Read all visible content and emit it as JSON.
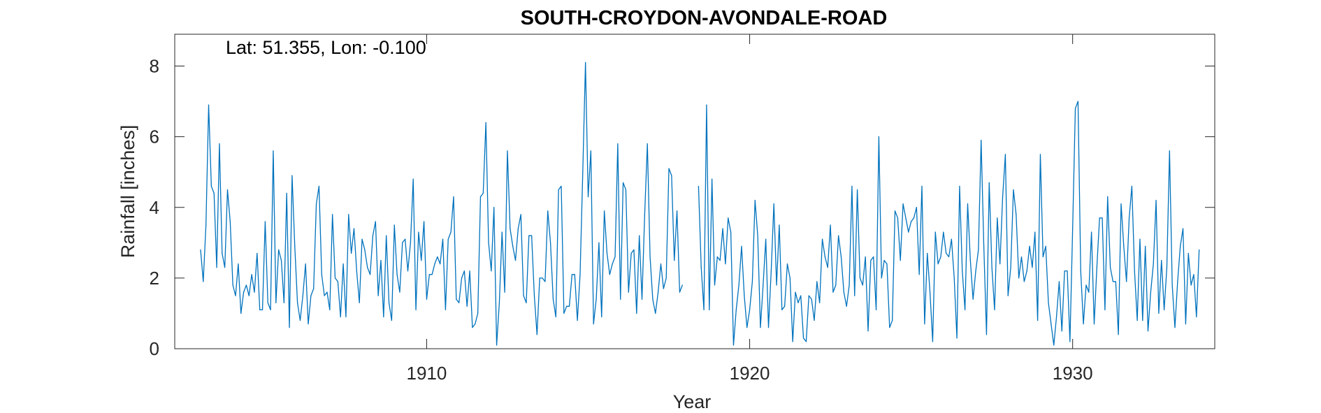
{
  "chart_data": {
    "type": "line",
    "title": "SOUTH-CROYDON-AVONDALE-ROAD",
    "annotation": "Lat: 51.355, Lon: -0.100",
    "xlabel": "Year",
    "ylabel": "Rainfall [inches]",
    "xlim": [
      1902.2,
      1934.4
    ],
    "ylim": [
      0,
      8.9
    ],
    "xticks": [
      1910,
      1920,
      1930
    ],
    "yticks": [
      0,
      2,
      4,
      6,
      8
    ],
    "grid": false,
    "line_color": "#0072BD",
    "series": [
      {
        "x_start": 1903.0,
        "x_step": 0.083333,
        "values": [
          2.8,
          1.9,
          3.5,
          6.9,
          4.6,
          4.4,
          2.3,
          5.8,
          2.7,
          2.3,
          4.5,
          3.6,
          1.8,
          1.5,
          2.4,
          1.0,
          1.6,
          1.8,
          1.5,
          2.1,
          1.6,
          2.7,
          1.1,
          1.1,
          3.6,
          1.3,
          1.1,
          5.6,
          1.3,
          2.8,
          2.5,
          1.3,
          4.4,
          0.6,
          4.9,
          2.9,
          1.3,
          0.8,
          1.5,
          2.4,
          0.7,
          1.5,
          1.7,
          4.1,
          4.6,
          2.1,
          1.5,
          1.6,
          1.1,
          3.8,
          2.0,
          1.9,
          0.9,
          2.4,
          0.9,
          3.8,
          2.7,
          3.4,
          2.2,
          1.3,
          3.1,
          2.8,
          2.3,
          2.1,
          3.2,
          3.6,
          1.5,
          2.5,
          0.9,
          3.2,
          1.3,
          0.8,
          3.5,
          2.1,
          1.6,
          3.0,
          3.1,
          2.2,
          3.0,
          4.8,
          1.1,
          3.3,
          2.5,
          3.6,
          1.4,
          2.1,
          2.1,
          2.4,
          2.6,
          2.4,
          3.1,
          1.1,
          3.1,
          3.3,
          4.3,
          1.4,
          1.3,
          2.0,
          2.2,
          1.2,
          2.2,
          0.6,
          0.7,
          1.0,
          4.3,
          4.4,
          6.4,
          3.0,
          2.2,
          4.0,
          0.1,
          1.3,
          3.3,
          1.6,
          5.6,
          3.4,
          2.9,
          2.5,
          3.4,
          3.8,
          1.5,
          1.3,
          3.2,
          3.2,
          1.5,
          0.4,
          2.0,
          2.0,
          1.9,
          3.9,
          3.0,
          1.4,
          0.9,
          4.5,
          4.6,
          1.0,
          1.2,
          1.2,
          2.1,
          2.1,
          0.8,
          2.1,
          5.0,
          8.1,
          4.3,
          5.6,
          0.7,
          1.4,
          3.0,
          0.9,
          3.9,
          2.7,
          2.1,
          2.4,
          2.6,
          5.8,
          1.4,
          4.7,
          4.5,
          1.6,
          2.7,
          2.8,
          1.0,
          3.2,
          1.4,
          3.8,
          5.8,
          2.6,
          1.4,
          1.0,
          1.6,
          2.4,
          1.7,
          2.0,
          5.1,
          4.9,
          2.5,
          3.9,
          1.6,
          1.8,
          null,
          null,
          null,
          null,
          null,
          4.6,
          2.3,
          1.1,
          6.9,
          1.1,
          4.8,
          1.8,
          2.6,
          2.5,
          3.4,
          2.4,
          3.7,
          3.3,
          0.1,
          1.1,
          1.8,
          2.9,
          1.5,
          0.6,
          1.1,
          1.9,
          4.2,
          3.2,
          0.6,
          1.8,
          3.1,
          0.6,
          2.2,
          4.1,
          1.8,
          3.5,
          1.1,
          1.2,
          2.4,
          2.0,
          0.2,
          1.6,
          1.3,
          1.5,
          0.3,
          0.2,
          1.5,
          1.4,
          0.8,
          1.9,
          1.3,
          3.1,
          2.6,
          2.3,
          3.5,
          1.6,
          1.8,
          3.2,
          2.6,
          1.6,
          1.2,
          1.8,
          4.6,
          1.5,
          4.5,
          2.0,
          1.8,
          2.6,
          0.5,
          2.5,
          2.6,
          1.1,
          6.0,
          2.0,
          2.5,
          2.4,
          0.6,
          0.8,
          3.9,
          3.7,
          2.5,
          4.1,
          3.7,
          3.3,
          3.6,
          3.7,
          4.0,
          2.1,
          4.6,
          0.7,
          2.7,
          1.6,
          0.2,
          3.3,
          2.4,
          2.6,
          3.3,
          2.7,
          2.6,
          3.1,
          2.0,
          0.3,
          4.6,
          2.2,
          1.1,
          4.1,
          2.5,
          1.4,
          2.2,
          2.8,
          5.9,
          2.9,
          0.4,
          4.7,
          2.3,
          1.1,
          3.7,
          2.4,
          4.3,
          5.5,
          1.5,
          2.3,
          4.5,
          3.8,
          2.0,
          2.6,
          1.9,
          2.2,
          2.9,
          2.3,
          3.3,
          0.8,
          5.5,
          2.6,
          2.9,
          1.3,
          0.7,
          0.1,
          0.9,
          1.9,
          0.5,
          2.2,
          2.2,
          0.2,
          3.4,
          6.8,
          7.0,
          2.2,
          0.7,
          1.8,
          1.6,
          3.3,
          0.7,
          2.3,
          3.7,
          3.7,
          1.1,
          4.3,
          2.3,
          1.9,
          1.9,
          0.4,
          4.1,
          2.9,
          1.9,
          3.7,
          4.6,
          2.2,
          0.8,
          3.1,
          0.8,
          2.9,
          0.5,
          1.6,
          2.4,
          4.2,
          1.0,
          2.5,
          1.1,
          2.3,
          5.6,
          1.8,
          0.6,
          1.9,
          2.9,
          3.4,
          0.7,
          2.7,
          1.8,
          2.1,
          0.9,
          2.8
        ]
      }
    ]
  }
}
